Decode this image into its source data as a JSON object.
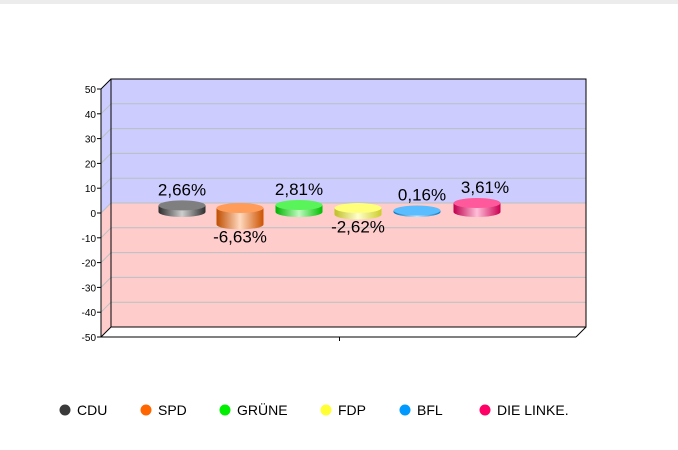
{
  "chart_data": {
    "type": "bar",
    "style": "3d-cylinder",
    "title": "",
    "xlabel": "",
    "ylabel": "",
    "ylim": [
      -50,
      50
    ],
    "yticks": [
      50,
      40,
      30,
      20,
      10,
      0,
      -10,
      -20,
      -30,
      -40,
      -50
    ],
    "grid": true,
    "legend_position": "bottom",
    "categories": [
      "CDU",
      "SPD",
      "GRÜNE",
      "FDP",
      "BFL",
      "DIE LINKE."
    ],
    "values": [
      2.66,
      -6.63,
      2.81,
      -2.62,
      0.16,
      3.61
    ],
    "data_labels": [
      "2,66%",
      "-6,63%",
      "2,81%",
      "-2,62%",
      "0,16%",
      "3,61%"
    ],
    "colors": [
      "#3a3a3a",
      "#ff6600",
      "#00ee00",
      "#ffff33",
      "#0099ff",
      "#ff0066"
    ],
    "background_positive": "#ccccff",
    "background_negative": "#ffcccc"
  }
}
